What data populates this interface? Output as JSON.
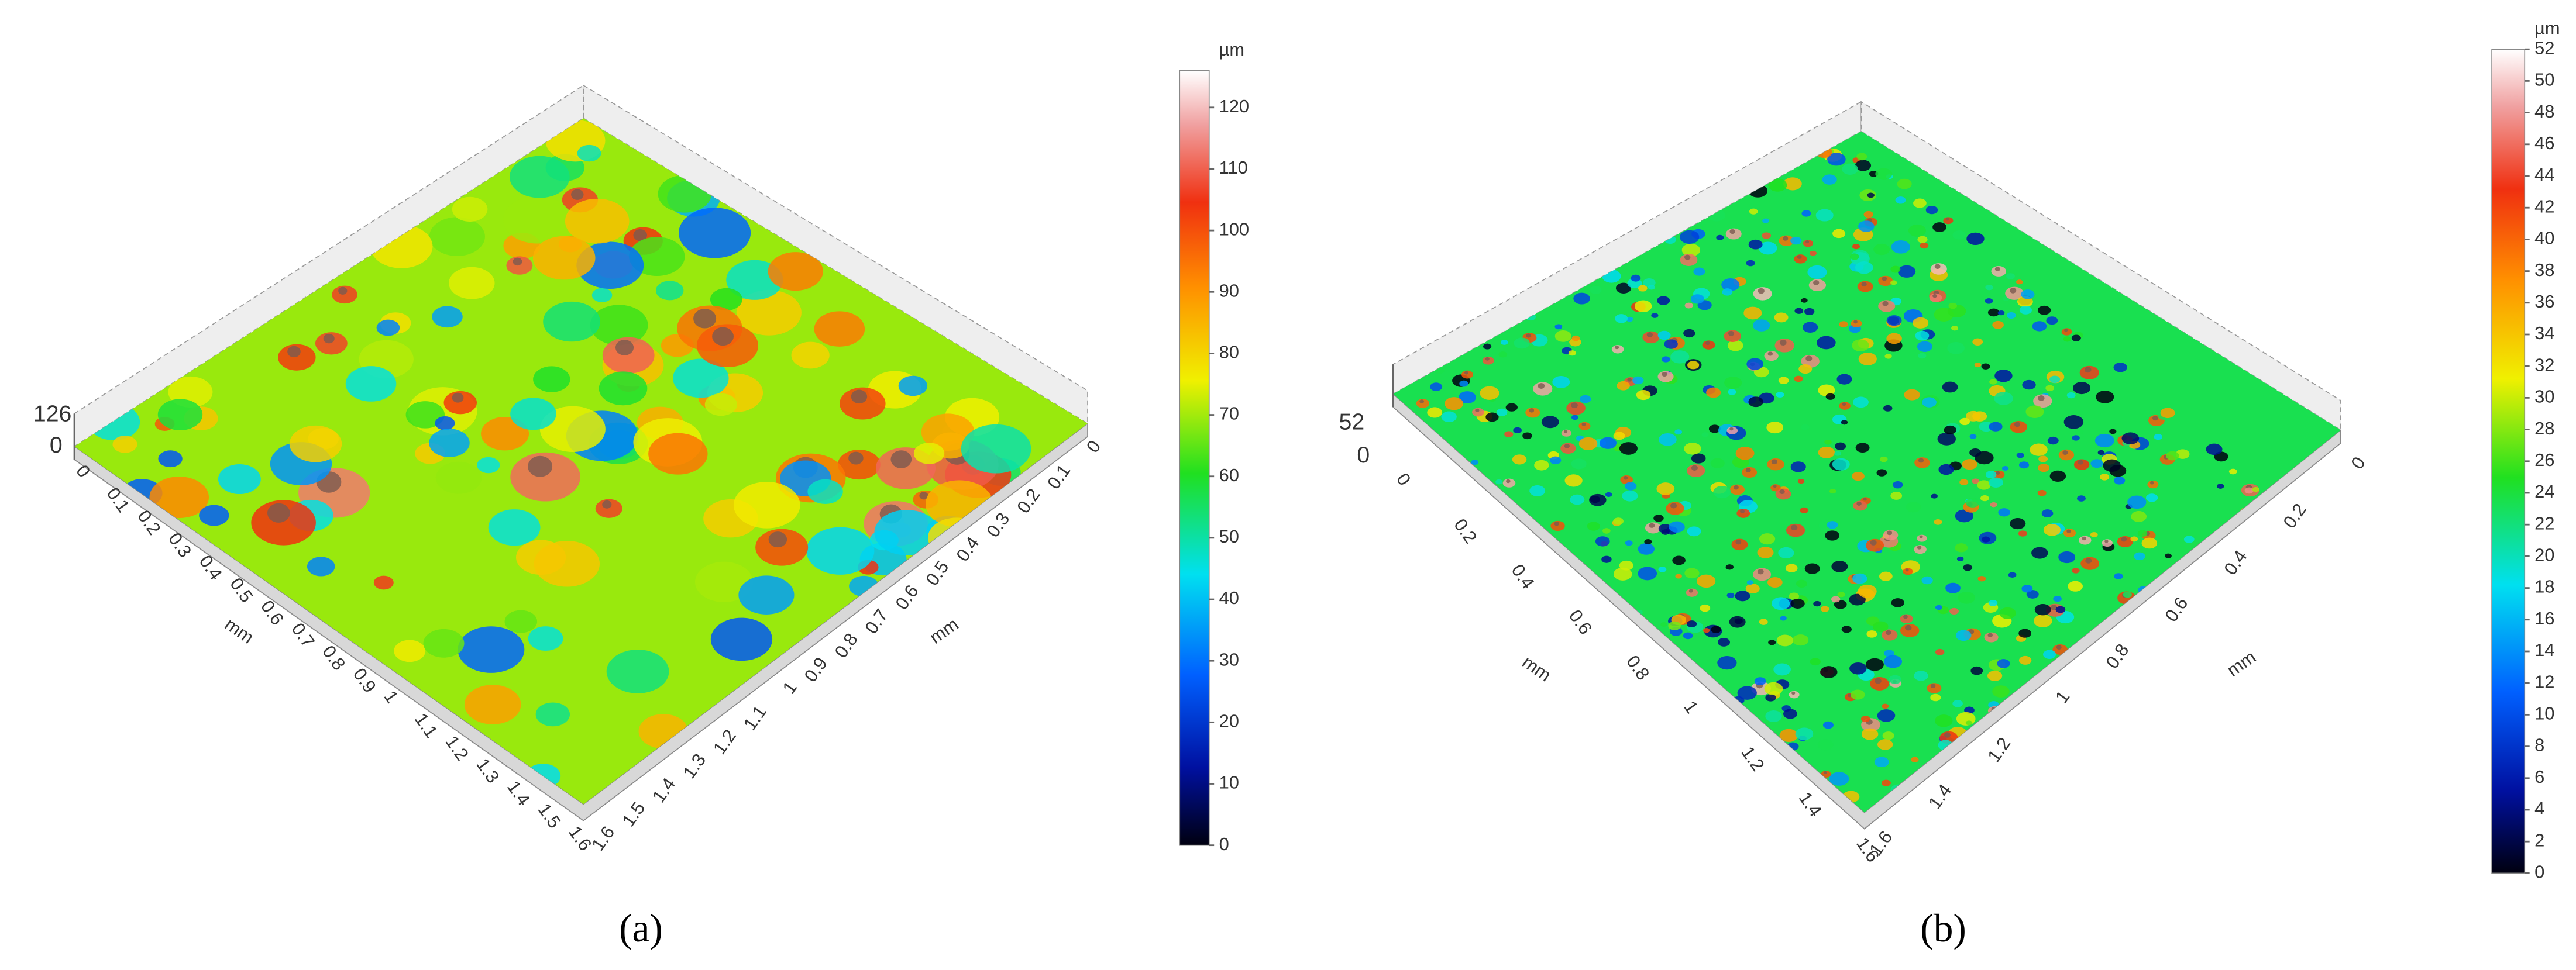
{
  "panels": [
    {
      "caption": "(a)",
      "z_max": 126,
      "z_min": 0,
      "left_axis_title": "mm",
      "right_axis_title": "mm",
      "left_ticks": [
        0,
        0.1,
        0.2,
        0.3,
        0.4,
        0.5,
        0.6,
        0.7,
        0.8,
        0.9,
        1,
        1.1,
        1.2,
        1.3,
        1.4,
        1.5,
        1.6
      ],
      "right_ticks": [
        1.6,
        1.5,
        1.4,
        1.3,
        1.2,
        1.1,
        1,
        0.9,
        0.8,
        0.7,
        0.6,
        0.5,
        0.4,
        0.3,
        0.2,
        0.1,
        0
      ],
      "colorbar_unit": "µm",
      "colorbar_ticks": [
        0,
        10,
        20,
        30,
        40,
        50,
        60,
        70,
        80,
        90,
        100,
        110,
        120
      ]
    },
    {
      "caption": "(b)",
      "z_max": 52,
      "z_min": 0,
      "left_axis_title": "mm",
      "right_axis_title": "mm",
      "left_ticks": [
        0,
        0.2,
        0.4,
        0.6,
        0.8,
        1,
        1.2,
        1.4,
        1.6
      ],
      "right_ticks": [
        1.6,
        1.4,
        1.2,
        1,
        0.8,
        0.6,
        0.4,
        0.2,
        0
      ],
      "colorbar_unit": "µm",
      "colorbar_ticks": [
        0,
        2,
        4,
        6,
        8,
        10,
        12,
        14,
        16,
        18,
        20,
        22,
        24,
        26,
        28,
        30,
        32,
        34,
        36,
        38,
        40,
        42,
        44,
        46,
        48,
        50,
        52
      ]
    }
  ]
}
